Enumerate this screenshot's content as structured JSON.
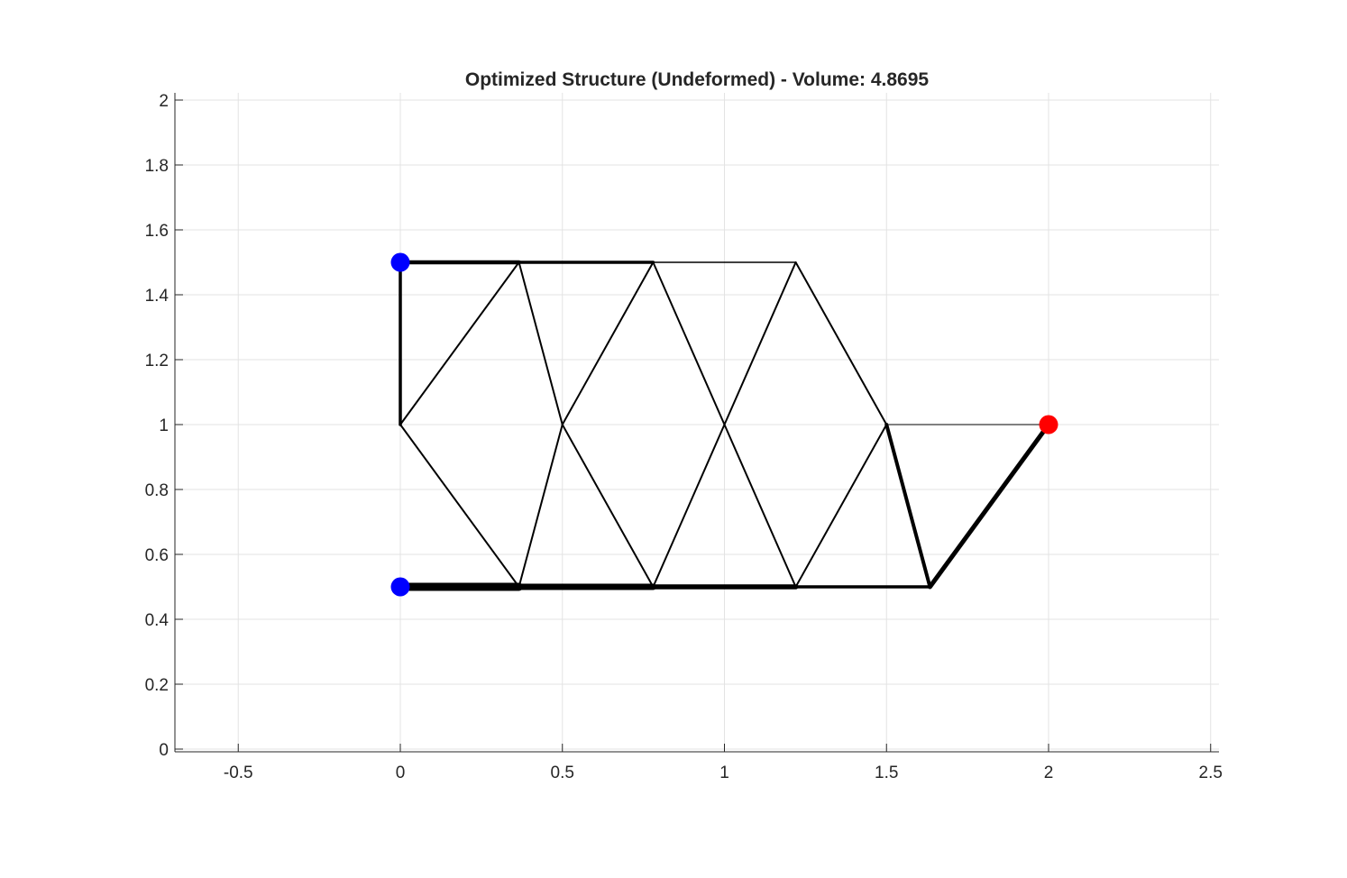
{
  "chart_data": {
    "type": "line",
    "title": "Optimized Structure (Undeformed) - Volume: 4.8695",
    "xlabel": "",
    "ylabel": "",
    "xlim": [
      -0.7,
      2.52
    ],
    "ylim": [
      -0.01,
      2.02
    ],
    "xticks": [
      -0.5,
      0,
      0.5,
      1,
      1.5,
      2,
      2.5
    ],
    "xtick_labels": [
      "-0.5",
      "0",
      "0.5",
      "1",
      "1.5",
      "2",
      "2.5"
    ],
    "yticks": [
      0,
      0.2,
      0.4,
      0.6,
      0.8,
      1,
      1.2,
      1.4,
      1.6,
      1.8,
      2
    ],
    "ytick_labels": [
      "0",
      "0.2",
      "0.4",
      "0.6",
      "0.8",
      "1",
      "1.2",
      "1.4",
      "1.6",
      "1.8",
      "2"
    ],
    "grid": true,
    "colors": {
      "member": "#000000",
      "support": "#0000ff",
      "load": "#ff0000"
    },
    "nodes": [
      {
        "id": "n1",
        "x": 0,
        "y": 1.5
      },
      {
        "id": "n2",
        "x": 0,
        "y": 1.0
      },
      {
        "id": "n3",
        "x": 0,
        "y": 0.5
      },
      {
        "id": "n4",
        "x": 0.366,
        "y": 1.5
      },
      {
        "id": "n5",
        "x": 0.366,
        "y": 0.5
      },
      {
        "id": "n6",
        "x": 0.5,
        "y": 1.0
      },
      {
        "id": "n7",
        "x": 0.78,
        "y": 1.5
      },
      {
        "id": "n8",
        "x": 0.78,
        "y": 0.5
      },
      {
        "id": "n9",
        "x": 1.0,
        "y": 1.0
      },
      {
        "id": "n10",
        "x": 1.22,
        "y": 1.5
      },
      {
        "id": "n11",
        "x": 1.22,
        "y": 0.5
      },
      {
        "id": "n12",
        "x": 1.5,
        "y": 1.0
      },
      {
        "id": "n13",
        "x": 1.634,
        "y": 0.5
      },
      {
        "id": "n14",
        "x": 2.0,
        "y": 1.0
      }
    ],
    "members": [
      {
        "from": [
          0,
          1.5
        ],
        "to": [
          0.366,
          1.5
        ],
        "width": 4.5
      },
      {
        "from": [
          0,
          1.5
        ],
        "to": [
          0,
          1.0
        ],
        "width": 3.5
      },
      {
        "from": [
          0,
          1.0
        ],
        "to": [
          0.366,
          1.5
        ],
        "width": 2
      },
      {
        "from": [
          0,
          1.0
        ],
        "to": [
          0.366,
          0.5
        ],
        "width": 2
      },
      {
        "from": [
          0.366,
          1.5
        ],
        "to": [
          0.78,
          1.5
        ],
        "width": 3.5
      },
      {
        "from": [
          0.366,
          1.5
        ],
        "to": [
          0.5,
          1.0
        ],
        "width": 2
      },
      {
        "from": [
          0.5,
          1.0
        ],
        "to": [
          0.78,
          1.5
        ],
        "width": 2
      },
      {
        "from": [
          0.5,
          1.0
        ],
        "to": [
          0.366,
          0.5
        ],
        "width": 2
      },
      {
        "from": [
          0.5,
          1.0
        ],
        "to": [
          0.78,
          0.5
        ],
        "width": 2
      },
      {
        "from": [
          0.78,
          1.5
        ],
        "to": [
          1.22,
          1.5
        ],
        "width": 1.6
      },
      {
        "from": [
          0.78,
          1.5
        ],
        "to": [
          1.0,
          1.0
        ],
        "width": 2
      },
      {
        "from": [
          1.0,
          1.0
        ],
        "to": [
          1.22,
          1.5
        ],
        "width": 2
      },
      {
        "from": [
          1.0,
          1.0
        ],
        "to": [
          0.78,
          0.5
        ],
        "width": 2
      },
      {
        "from": [
          1.0,
          1.0
        ],
        "to": [
          1.22,
          0.5
        ],
        "width": 2
      },
      {
        "from": [
          1.22,
          1.5
        ],
        "to": [
          1.5,
          1.0
        ],
        "width": 2
      },
      {
        "from": [
          1.5,
          1.0
        ],
        "to": [
          1.22,
          0.5
        ],
        "width": 2
      },
      {
        "from": [
          1.5,
          1.0
        ],
        "to": [
          2.0,
          1.0
        ],
        "width": 1
      },
      {
        "from": [
          1.5,
          1.0
        ],
        "to": [
          1.634,
          0.5
        ],
        "width": 4
      },
      {
        "from": [
          1.634,
          0.5
        ],
        "to": [
          2.0,
          1.0
        ],
        "width": 5
      },
      {
        "from": [
          0,
          0.5
        ],
        "to": [
          0.366,
          0.5
        ],
        "width": 9
      },
      {
        "from": [
          0.366,
          0.5
        ],
        "to": [
          0.78,
          0.5
        ],
        "width": 7
      },
      {
        "from": [
          0.78,
          0.5
        ],
        "to": [
          1.22,
          0.5
        ],
        "width": 5.5
      },
      {
        "from": [
          1.22,
          0.5
        ],
        "to": [
          1.634,
          0.5
        ],
        "width": 3.5
      }
    ],
    "supports": [
      {
        "x": 0,
        "y": 1.5
      },
      {
        "x": 0,
        "y": 0.5
      }
    ],
    "loads": [
      {
        "x": 2.0,
        "y": 1.0
      }
    ]
  }
}
